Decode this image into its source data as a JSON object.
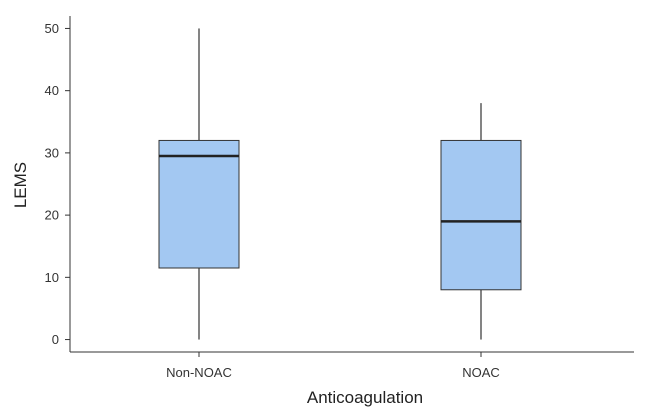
{
  "chart_data": {
    "type": "box",
    "title": "",
    "xlabel": "Anticoagulation",
    "ylabel": "LEMS",
    "ylim": [
      -2,
      52
    ],
    "yticks": [
      0,
      10,
      20,
      30,
      40,
      50
    ],
    "grid": false,
    "box_color": "#a3c8f2",
    "box_stroke": "#333333",
    "categories": [
      "Non-NOAC",
      "NOAC"
    ],
    "boxes": [
      {
        "category": "Non-NOAC",
        "min": 0,
        "q1": 11.5,
        "median": 29.5,
        "q3": 32,
        "max": 50
      },
      {
        "category": "NOAC",
        "min": 0,
        "q1": 8,
        "median": 19,
        "q3": 32,
        "max": 38
      }
    ]
  }
}
